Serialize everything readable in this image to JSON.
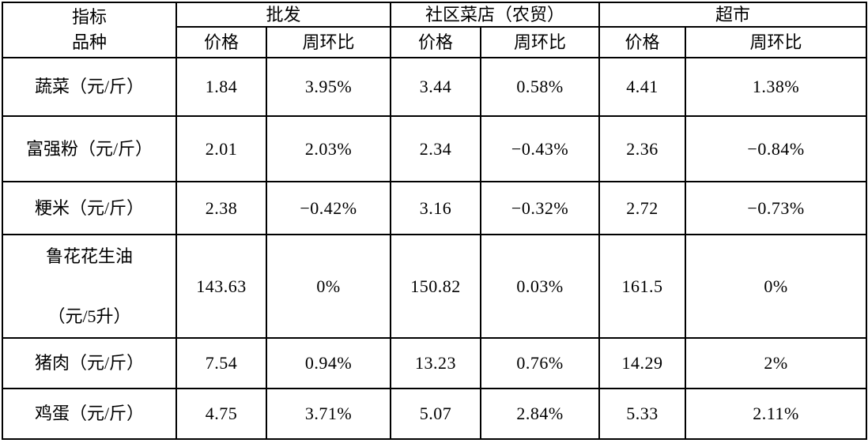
{
  "table": {
    "corner_line1": "指标",
    "corner_line2": "品种",
    "groups": [
      {
        "label": "批发"
      },
      {
        "label": "社区菜店（农贸）"
      },
      {
        "label": "超市"
      }
    ],
    "subheaders": [
      "价格",
      "周环比",
      "价格",
      "周环比",
      "价格",
      "周环比"
    ],
    "rows": [
      {
        "label": [
          "蔬菜（元/斤）"
        ],
        "values": [
          "1.84",
          "3.95%",
          "3.44",
          "0.58%",
          "4.41",
          "1.38%"
        ]
      },
      {
        "label": [
          "富强粉（元/斤）"
        ],
        "values": [
          "2.01",
          "2.03%",
          "2.34",
          "−0.43%",
          "2.36",
          "−0.84%"
        ]
      },
      {
        "label": [
          "粳米（元/斤）"
        ],
        "values": [
          "2.38",
          "−0.42%",
          "3.16",
          "−0.32%",
          "2.72",
          "−0.73%"
        ]
      },
      {
        "label": [
          "鲁花花生油",
          "（元/5升）"
        ],
        "values": [
          "143.63",
          "0%",
          "150.82",
          "0.03%",
          "161.5",
          "0%"
        ]
      },
      {
        "label": [
          "猪肉（元/斤）"
        ],
        "values": [
          "7.54",
          "0.94%",
          "13.23",
          "0.76%",
          "14.29",
          "2%"
        ]
      },
      {
        "label": [
          "鸡蛋（元/斤）"
        ],
        "values": [
          "4.75",
          "3.71%",
          "5.07",
          "2.84%",
          "5.33",
          "2.11%"
        ]
      }
    ],
    "colors": {
      "border": "#000000",
      "text": "#000000",
      "background": "#ffffff"
    }
  }
}
